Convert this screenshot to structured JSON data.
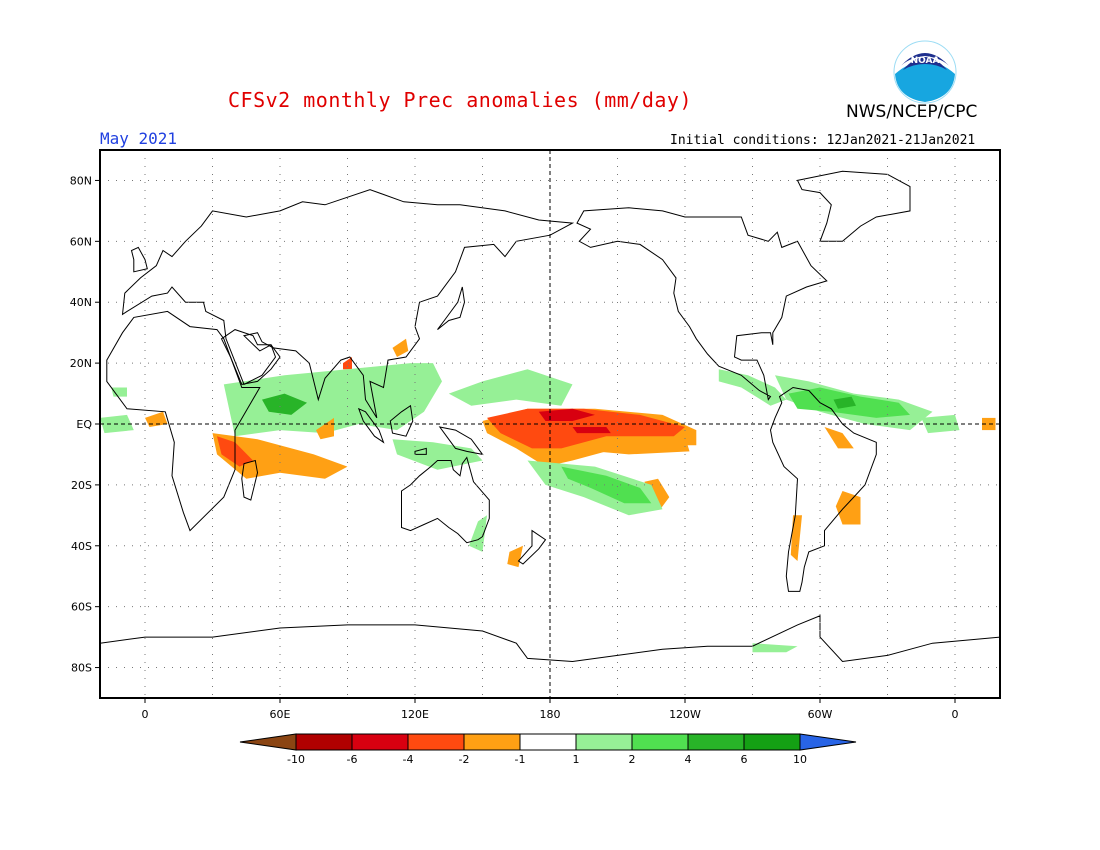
{
  "header": {
    "title": "CFSv2 monthly Prec anomalies (mm/day)",
    "org": "NWS/NCEP/CPC",
    "month": "May 2021",
    "initial_conditions": "Initial conditions: 12Jan2021-21Jan2021",
    "logo_text": "NOAA"
  },
  "map": {
    "projection": "equirectangular",
    "lon_range": [
      -20,
      380
    ],
    "lat_range": [
      -90,
      90
    ],
    "gridlines": "dotted",
    "lat_labels": [
      "80N",
      "60N",
      "40N",
      "20N",
      "EQ",
      "20S",
      "40S",
      "60S",
      "80S"
    ],
    "lon_labels": [
      "0",
      "60E",
      "120E",
      "180",
      "120W",
      "60W",
      "0"
    ],
    "dashed_reference_lines": [
      "equator",
      "180"
    ],
    "anomaly_regions": [
      {
        "name": "central-pacific",
        "category": 4,
        "color": "#ff4a10"
      },
      {
        "name": "central-pacific-core",
        "category": 3,
        "color": "#d40000"
      },
      {
        "name": "east-pacific-tongue",
        "category": 5,
        "color": "#ffa014"
      },
      {
        "name": "indian-ocean-north",
        "category": 8,
        "color": "#50e050"
      },
      {
        "name": "south-pacific-convergence",
        "category": 8,
        "color": "#50e050"
      },
      {
        "name": "madagascar-east",
        "category": 4,
        "color": "#ff4a10"
      },
      {
        "name": "atlantic-itcz",
        "category": 8,
        "color": "#50e050"
      },
      {
        "name": "south-america-east",
        "category": 5,
        "color": "#ffa014"
      }
    ]
  },
  "colorbar": {
    "labels": [
      "-10",
      "-6",
      "-4",
      "-2",
      "-1",
      "1",
      "2",
      "4",
      "6",
      "10"
    ],
    "colors": [
      "#8b4513",
      "#b00000",
      "#d80010",
      "#ff4a10",
      "#ffa014",
      "#ffffff",
      "#96f096",
      "#50e050",
      "#28b428",
      "#14a014",
      "#2864e6"
    ]
  }
}
